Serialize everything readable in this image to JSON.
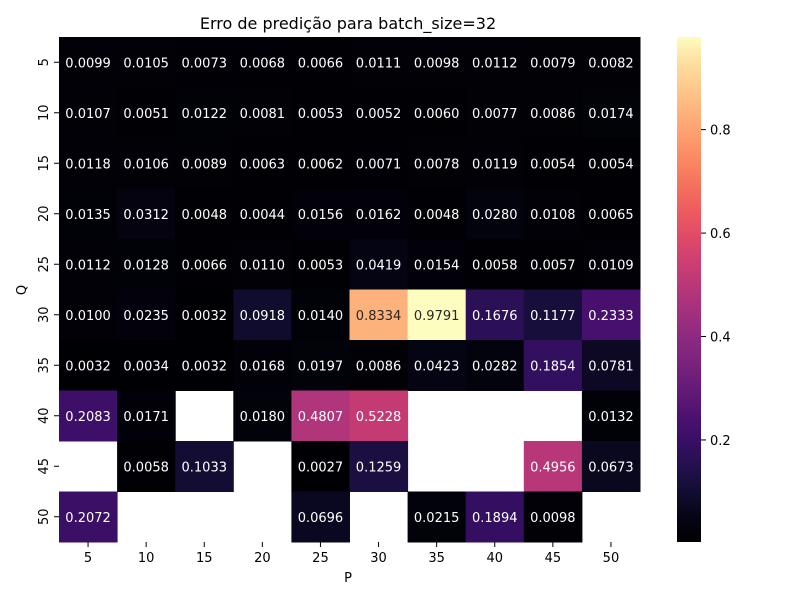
{
  "chart_data": {
    "type": "heatmap",
    "title": "Erro de predição para batch_size=32",
    "xlabel": "P",
    "ylabel": "Q",
    "x": [
      "5",
      "10",
      "15",
      "20",
      "25",
      "30",
      "35",
      "40",
      "45",
      "50"
    ],
    "y": [
      "5",
      "10",
      "15",
      "20",
      "25",
      "30",
      "35",
      "40",
      "45",
      "50"
    ],
    "values": [
      [
        0.0099,
        0.0105,
        0.0073,
        0.0068,
        0.0066,
        0.0111,
        0.0098,
        0.0112,
        0.0079,
        0.0082
      ],
      [
        0.0107,
        0.0051,
        0.0122,
        0.0081,
        0.0053,
        0.0052,
        0.006,
        0.0077,
        0.0086,
        0.0174
      ],
      [
        0.0118,
        0.0106,
        0.0089,
        0.0063,
        0.0062,
        0.0071,
        0.0078,
        0.0119,
        0.0054,
        0.0054
      ],
      [
        0.0135,
        0.0312,
        0.0048,
        0.0044,
        0.0156,
        0.0162,
        0.0048,
        0.028,
        0.0108,
        0.0065
      ],
      [
        0.0112,
        0.0128,
        0.0066,
        0.011,
        0.0053,
        0.0419,
        0.0154,
        0.0058,
        0.0057,
        0.0109
      ],
      [
        0.01,
        0.0235,
        0.0032,
        0.0918,
        0.014,
        0.8334,
        0.9791,
        0.1676,
        0.1177,
        0.2333
      ],
      [
        0.0032,
        0.0034,
        0.0032,
        0.0168,
        0.0197,
        0.0086,
        0.0423,
        0.0282,
        0.1854,
        0.0781
      ],
      [
        0.2083,
        0.0171,
        null,
        0.018,
        0.4807,
        0.5228,
        null,
        null,
        null,
        0.0132
      ],
      [
        null,
        0.0058,
        0.1033,
        null,
        0.0027,
        0.1259,
        null,
        null,
        0.4956,
        0.0673
      ],
      [
        0.2072,
        null,
        null,
        null,
        0.0696,
        null,
        0.0215,
        0.1894,
        0.0098,
        null
      ]
    ],
    "value_format": "0.0000",
    "colormap": "magma",
    "colorbar": {
      "min": 0.0027,
      "max": 0.9791,
      "ticks": [
        0.2,
        0.4,
        0.6,
        0.8
      ],
      "tick_labels": [
        "0.2",
        "0.4",
        "0.6",
        "0.8"
      ]
    },
    "missing_color": "#ffffff",
    "grid": false
  }
}
